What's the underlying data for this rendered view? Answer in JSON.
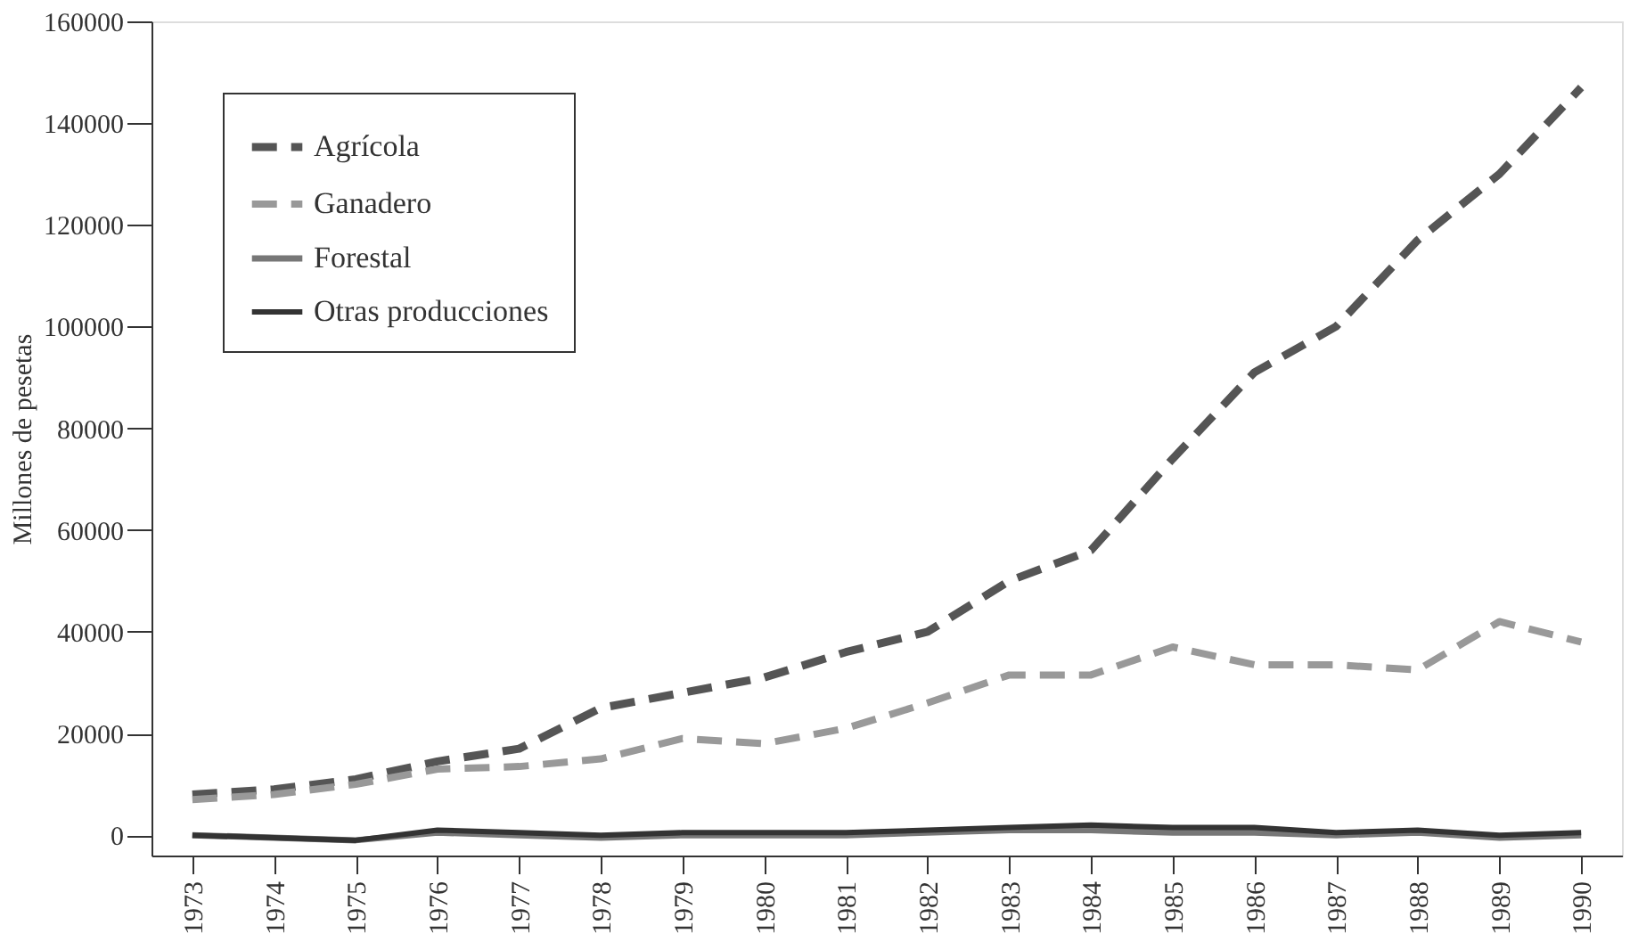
{
  "chart_data": {
    "type": "line",
    "ylabel": "Millones de pesetas",
    "categories": [
      "1973",
      "1974",
      "1975",
      "1976",
      "1977",
      "1978",
      "1979",
      "1980",
      "1981",
      "1982",
      "1983",
      "1984",
      "1985",
      "1986",
      "1987",
      "1988",
      "1989",
      "1990"
    ],
    "ylim": [
      -4000,
      160000
    ],
    "yticks": [
      0,
      20000,
      40000,
      60000,
      80000,
      100000,
      120000,
      140000,
      160000
    ],
    "grid": false,
    "legend": "top left",
    "marker": "none",
    "series": [
      {
        "name": "Agrícola",
        "color": "#555555",
        "line_style": "dashed",
        "values": [
          8000,
          9000,
          11000,
          14500,
          17000,
          25000,
          28000,
          31000,
          36000,
          40000,
          50000,
          56000,
          74000,
          91000,
          100000,
          117000,
          130000,
          147000
        ]
      },
      {
        "name": "Ganadero",
        "color": "#999999",
        "line_style": "dashed",
        "values": [
          7000,
          8000,
          10000,
          13000,
          13500,
          15000,
          19000,
          18000,
          21000,
          26000,
          31500,
          31500,
          37000,
          33500,
          33500,
          32500,
          42000,
          38000
        ]
      },
      {
        "name": "Forestal",
        "color": "#777777",
        "line_style": "solid",
        "values": [
          0,
          -500,
          -1000,
          500,
          0,
          -500,
          0,
          0,
          0,
          500,
          1000,
          1000,
          500,
          500,
          0,
          500,
          -500,
          0
        ]
      },
      {
        "name": "Otras producciones",
        "color": "#333333",
        "line_style": "solid",
        "values": [
          0,
          -500,
          -1000,
          1000,
          500,
          0,
          500,
          500,
          500,
          1000,
          1500,
          2000,
          1500,
          1500,
          500,
          1000,
          0,
          500
        ]
      }
    ]
  }
}
